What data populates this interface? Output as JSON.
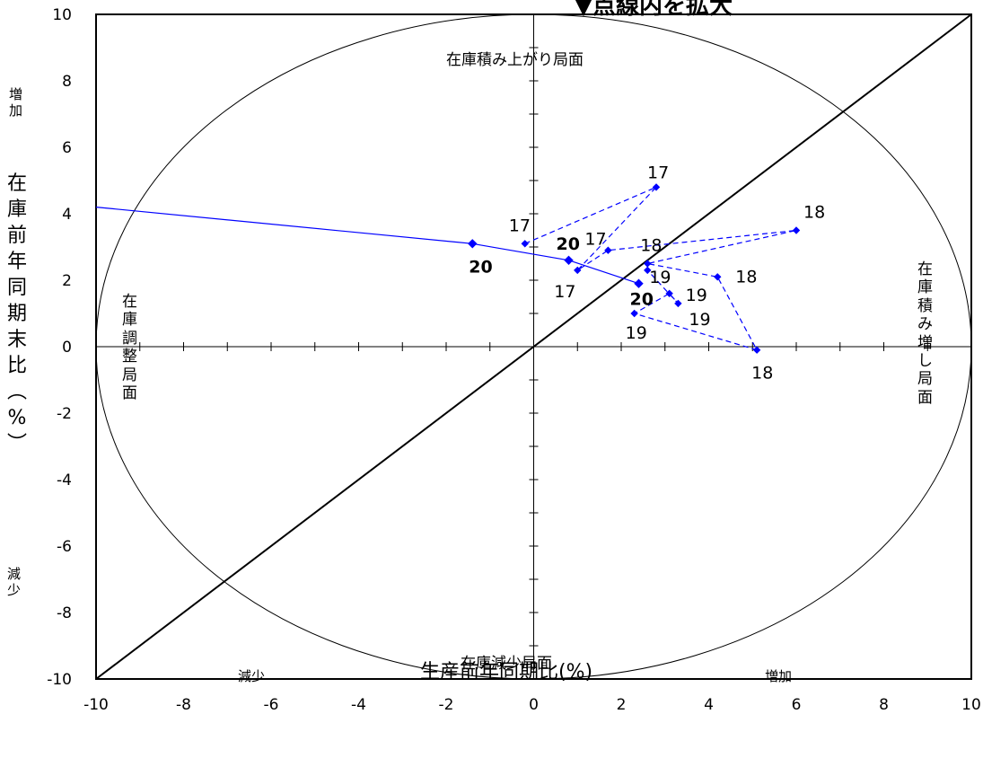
{
  "chart_data": {
    "type": "scatter",
    "title": "",
    "note": "▼点線内を拡大",
    "xlabel": "生産前年同期比(%)",
    "ylabel": "在庫前年同期末比(%)",
    "xlim": [
      -10,
      10
    ],
    "ylim": [
      -10,
      10
    ],
    "x_ticks": [
      "-10",
      "-8",
      "-6",
      "-4",
      "-2",
      "0",
      "2",
      "4",
      "6",
      "8",
      "10"
    ],
    "y_ticks": [
      "10",
      "8",
      "6",
      "4",
      "2",
      "0",
      "-2",
      "-4",
      "-6",
      "-8",
      "-10"
    ],
    "grid": false,
    "legend": null,
    "reference_lines": [
      {
        "type": "diagonal",
        "from": [
          -10,
          -10
        ],
        "to": [
          10,
          10
        ]
      },
      {
        "type": "ellipse",
        "center": [
          0,
          0
        ],
        "rx": 10,
        "ry": 10
      }
    ],
    "quadrant_labels": {
      "top": "在庫積み上がり局面",
      "bottom": "在庫減少局面",
      "left": "在庫調整局面",
      "right": "在庫積み増し局面"
    },
    "direction_labels": {
      "x_decrease": "減少",
      "x_increase": "増加",
      "y_increase": "増加",
      "y_decrease": "減少"
    },
    "series": [
      {
        "style": "dashed",
        "points": [
          {
            "x": -0.2,
            "y": 3.1,
            "label": "17"
          },
          {
            "x": 2.8,
            "y": 4.8,
            "label": "17"
          },
          {
            "x": 1.0,
            "y": 2.3,
            "label": "17"
          },
          {
            "x": 1.7,
            "y": 2.9,
            "label": "17"
          },
          {
            "x": 6.0,
            "y": 3.5,
            "label": "18"
          },
          {
            "x": 2.6,
            "y": 2.5,
            "label": "18"
          },
          {
            "x": 4.2,
            "y": 2.1,
            "label": "18"
          },
          {
            "x": 5.1,
            "y": -0.1,
            "label": "18"
          },
          {
            "x": 2.3,
            "y": 1.0,
            "label": "19"
          },
          {
            "x": 3.1,
            "y": 1.6,
            "label": "19"
          },
          {
            "x": 3.3,
            "y": 1.3,
            "label": "19"
          },
          {
            "x": 2.6,
            "y": 2.3,
            "label": "19"
          }
        ]
      },
      {
        "style": "solid",
        "points": [
          {
            "x": -10,
            "y": 4.2,
            "label": ""
          },
          {
            "x": -1.4,
            "y": 3.1,
            "label": "20"
          },
          {
            "x": 0.8,
            "y": 2.6,
            "label": "20"
          },
          {
            "x": 2.4,
            "y": 1.9,
            "label": "20"
          }
        ]
      }
    ],
    "colors": {
      "data": "#0000ff",
      "axes": "#000000"
    }
  }
}
